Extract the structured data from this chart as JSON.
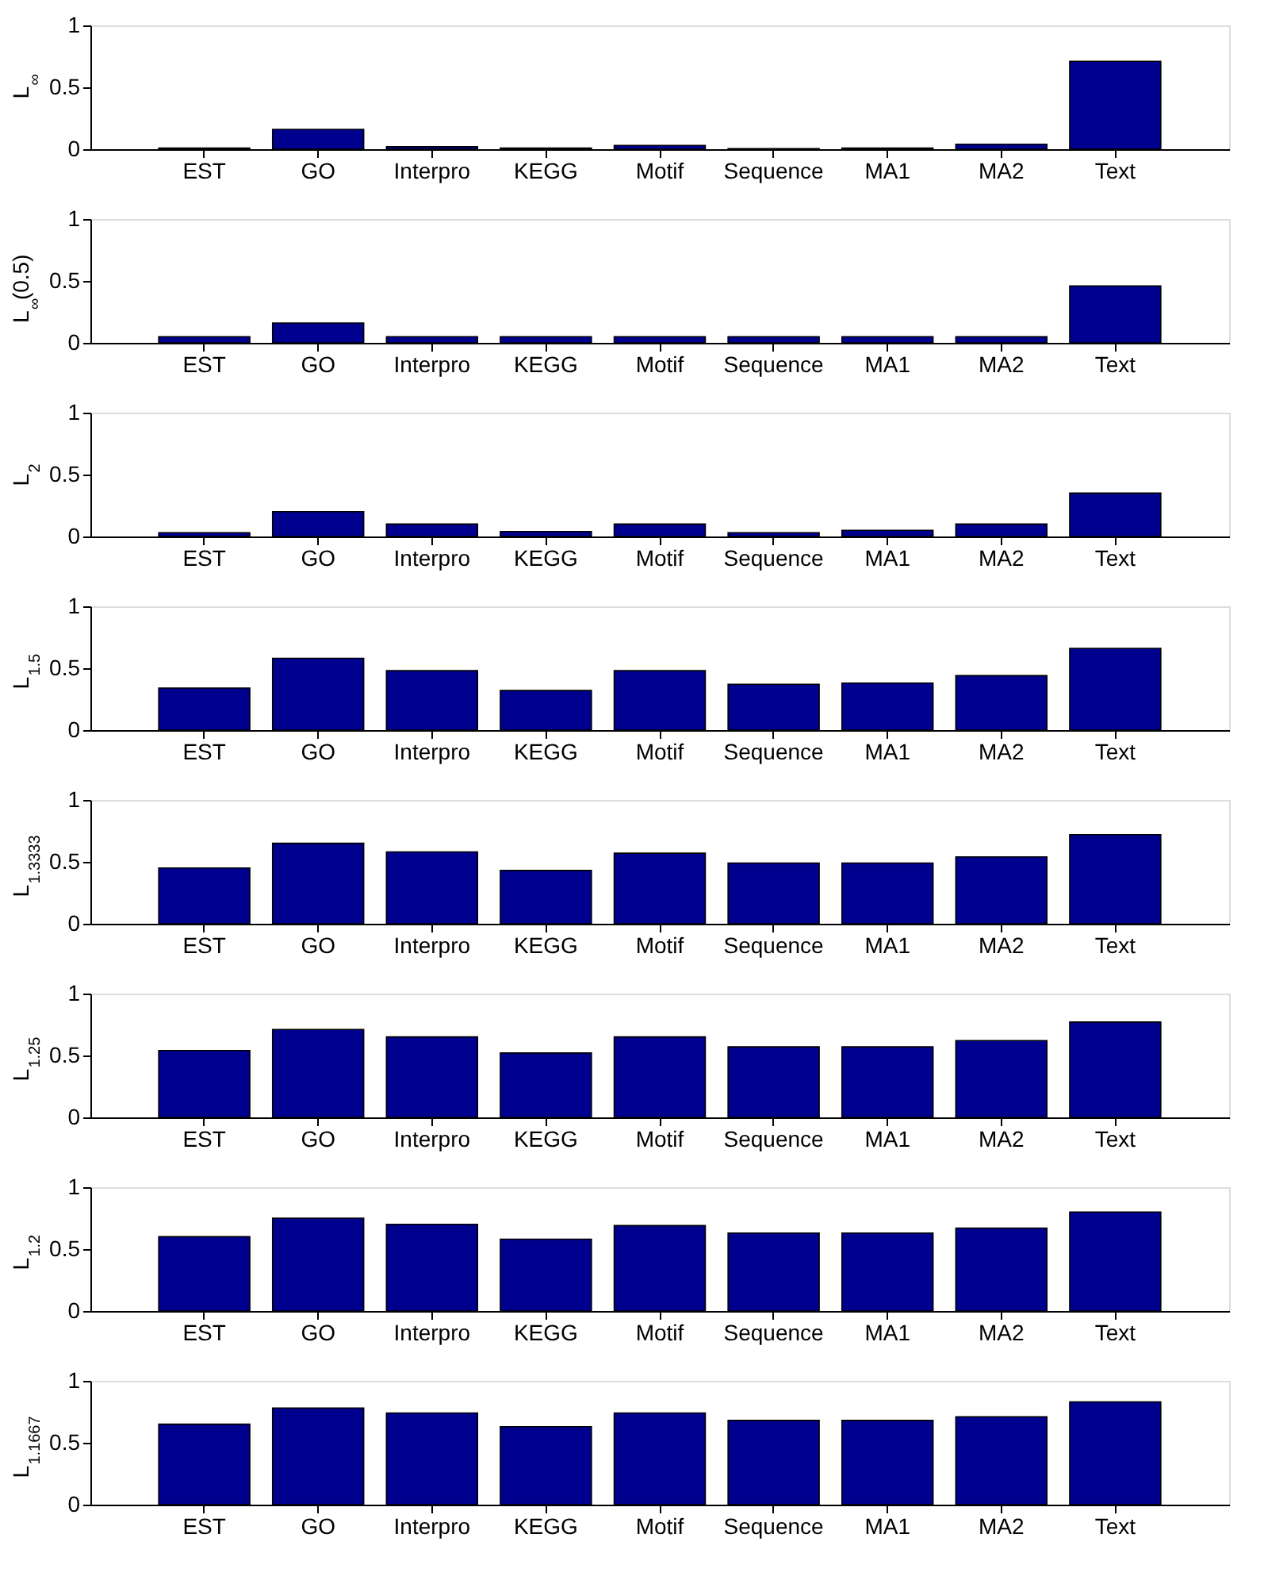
{
  "chart_data": [
    {
      "type": "bar",
      "ylabel": "L$_{∞}$",
      "categories": [
        "EST",
        "GO",
        "Interpro",
        "KEGG",
        "Motif",
        "Sequence",
        "MA1",
        "MA2",
        "Text"
      ],
      "values": [
        0.01,
        0.16,
        0.02,
        0.01,
        0.03,
        0.005,
        0.01,
        0.04,
        0.71
      ],
      "color": "#00008f",
      "ylim": [
        0,
        1
      ],
      "yticks": [
        0,
        0.5,
        1
      ]
    },
    {
      "type": "bar",
      "ylabel": "L$_{∞}$(0.5)",
      "categories": [
        "EST",
        "GO",
        "Interpro",
        "KEGG",
        "Motif",
        "Sequence",
        "MA1",
        "MA2",
        "Text"
      ],
      "values": [
        0.05,
        0.16,
        0.05,
        0.05,
        0.05,
        0.05,
        0.05,
        0.05,
        0.46
      ],
      "color": "#00008f",
      "ylim": [
        0,
        1
      ],
      "yticks": [
        0,
        0.5,
        1
      ]
    },
    {
      "type": "bar",
      "ylabel": "L$_{2}$",
      "categories": [
        "EST",
        "GO",
        "Interpro",
        "KEGG",
        "Motif",
        "Sequence",
        "MA1",
        "MA2",
        "Text"
      ],
      "values": [
        0.03,
        0.2,
        0.1,
        0.04,
        0.1,
        0.03,
        0.05,
        0.1,
        0.35
      ],
      "color": "#00008f",
      "ylim": [
        0,
        1
      ],
      "yticks": [
        0,
        0.5,
        1
      ]
    },
    {
      "type": "bar",
      "ylabel": "L$_{1.5}$",
      "categories": [
        "EST",
        "GO",
        "Interpro",
        "KEGG",
        "Motif",
        "Sequence",
        "MA1",
        "MA2",
        "Text"
      ],
      "values": [
        0.34,
        0.58,
        0.48,
        0.32,
        0.48,
        0.37,
        0.38,
        0.44,
        0.66
      ],
      "color": "#00008f",
      "ylim": [
        0,
        1
      ],
      "yticks": [
        0,
        0.5,
        1
      ]
    },
    {
      "type": "bar",
      "ylabel": "L$_{1.3333}$",
      "categories": [
        "EST",
        "GO",
        "Interpro",
        "KEGG",
        "Motif",
        "Sequence",
        "MA1",
        "MA2",
        "Text"
      ],
      "values": [
        0.45,
        0.65,
        0.58,
        0.43,
        0.57,
        0.49,
        0.49,
        0.54,
        0.72
      ],
      "color": "#00008f",
      "ylim": [
        0,
        1
      ],
      "yticks": [
        0,
        0.5,
        1
      ]
    },
    {
      "type": "bar",
      "ylabel": "L$_{1.25}$",
      "categories": [
        "EST",
        "GO",
        "Interpro",
        "KEGG",
        "Motif",
        "Sequence",
        "MA1",
        "MA2",
        "Text"
      ],
      "values": [
        0.54,
        0.71,
        0.65,
        0.52,
        0.65,
        0.57,
        0.57,
        0.62,
        0.77
      ],
      "color": "#00008f",
      "ylim": [
        0,
        1
      ],
      "yticks": [
        0,
        0.5,
        1
      ]
    },
    {
      "type": "bar",
      "ylabel": "L$_{1.2}$",
      "categories": [
        "EST",
        "GO",
        "Interpro",
        "KEGG",
        "Motif",
        "Sequence",
        "MA1",
        "MA2",
        "Text"
      ],
      "values": [
        0.6,
        0.75,
        0.7,
        0.58,
        0.69,
        0.63,
        0.63,
        0.67,
        0.8
      ],
      "color": "#00008f",
      "ylim": [
        0,
        1
      ],
      "yticks": [
        0,
        0.5,
        1
      ]
    },
    {
      "type": "bar",
      "ylabel": "L$_{1.1667}$",
      "categories": [
        "EST",
        "GO",
        "Interpro",
        "KEGG",
        "Motif",
        "Sequence",
        "MA1",
        "MA2",
        "Text"
      ],
      "values": [
        0.65,
        0.78,
        0.74,
        0.63,
        0.74,
        0.68,
        0.68,
        0.71,
        0.83
      ],
      "color": "#00008f",
      "ylim": [
        0,
        1
      ],
      "yticks": [
        0,
        0.5,
        1
      ]
    }
  ]
}
